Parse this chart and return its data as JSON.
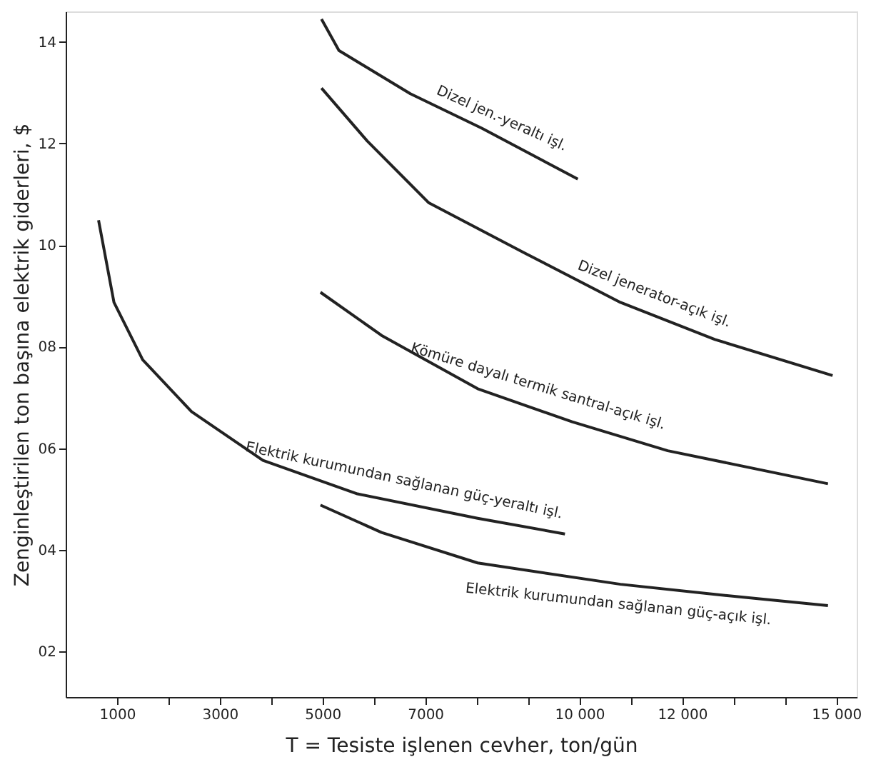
{
  "chart_data": {
    "type": "line",
    "xlabel": "T = Tesiste işlenen cevher, ton/gün",
    "ylabel": "Zenginleştirilen ton başına elektrik giderleri, $",
    "xlim": [
      0,
      15400
    ],
    "ylim": [
      1.1,
      14.6
    ],
    "xticks": [
      {
        "value": 1000,
        "label": "1000"
      },
      {
        "value": 2000,
        "label": null
      },
      {
        "value": 3000,
        "label": "3000"
      },
      {
        "value": 4000,
        "label": null
      },
      {
        "value": 5000,
        "label": "5000"
      },
      {
        "value": 6000,
        "label": null
      },
      {
        "value": 7000,
        "label": "7000"
      },
      {
        "value": 8000,
        "label": null
      },
      {
        "value": 9000,
        "label": null
      },
      {
        "value": 10000,
        "label": "10 000"
      },
      {
        "value": 11000,
        "label": null
      },
      {
        "value": 12000,
        "label": "12 000"
      },
      {
        "value": 13000,
        "label": null
      },
      {
        "value": 14000,
        "label": null
      },
      {
        "value": 15000,
        "label": "15 000"
      }
    ],
    "yticks": [
      {
        "value": 2,
        "label": "02"
      },
      {
        "value": 4,
        "label": "04"
      },
      {
        "value": 6,
        "label": "06"
      },
      {
        "value": 8,
        "label": "08"
      },
      10,
      12,
      14
    ],
    "grid": false,
    "marker": "none",
    "line_style": "solid",
    "series": [
      {
        "color": "#222222",
        "x": [
          4980,
          5320,
          6710,
          8100,
          9970
        ],
        "values": [
          14.45,
          13.83,
          12.98,
          12.3,
          11.3
        ]
      },
      {
        "color": "#222222",
        "x": [
          4980,
          5870,
          7070,
          8940,
          10800,
          12640,
          14930
        ],
        "values": [
          13.09,
          12.05,
          10.83,
          9.84,
          8.87,
          8.14,
          7.43
        ]
      },
      {
        "color": "#222222",
        "x": [
          4960,
          6150,
          8020,
          9860,
          11720,
          14840
        ],
        "values": [
          9.07,
          8.22,
          7.17,
          6.52,
          5.95,
          5.3
        ]
      },
      {
        "color": "#222222",
        "x": [
          640,
          940,
          1500,
          2450,
          3840,
          5680,
          8020,
          9720
        ],
        "values": [
          10.49,
          8.87,
          7.74,
          6.72,
          5.76,
          5.1,
          4.62,
          4.31
        ]
      },
      {
        "color": "#222222",
        "x": [
          4960,
          6150,
          8020,
          10800,
          12640,
          14840
        ],
        "values": [
          4.88,
          4.34,
          3.74,
          3.32,
          3.12,
          2.9
        ]
      }
    ],
    "annotations": [
      {
        "text": "Dizel jen.-yeraltı işl.",
        "x": 8100,
        "y": 12.3
      },
      {
        "text": "Dizel jenerator-açık işl.",
        "x": 10800,
        "y": 8.87
      },
      {
        "text": "Kömüre dayalı termik santral-açık işl.",
        "x": 8020,
        "y": 7.17
      },
      {
        "text": "Elektrik kurumundan sağlanan güç-yeraltı işl.",
        "x": 5680,
        "y": 5.1
      },
      {
        "text": "Elektrik kurumundan sağlanan güç-açık işl.",
        "x": 10800,
        "y": 3.32
      }
    ]
  }
}
